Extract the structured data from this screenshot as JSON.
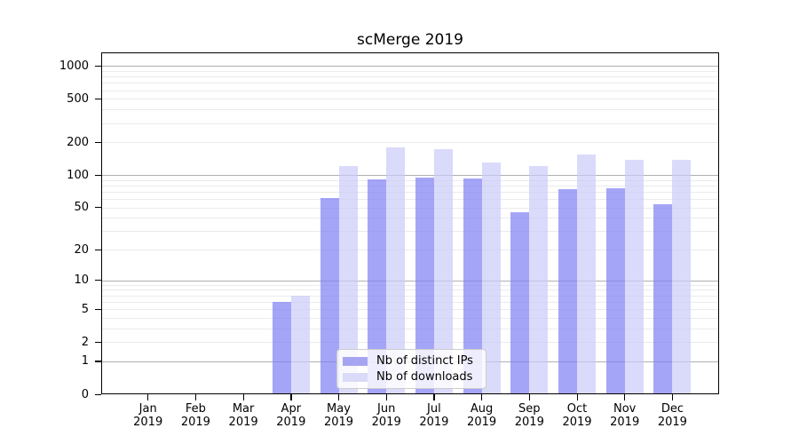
{
  "title": "scMerge 2019",
  "y_axis": {
    "tick_values": [
      1000,
      500,
      200,
      100,
      50,
      20,
      10,
      5,
      2,
      1,
      0
    ],
    "tick_labels": [
      "1000",
      "500",
      "200",
      "100",
      "50",
      "20",
      "10",
      "5",
      "2",
      "1",
      "0"
    ],
    "scale": "log10(value+1)"
  },
  "x_axis": {
    "months": [
      "Jan",
      "Feb",
      "Mar",
      "Apr",
      "May",
      "Jun",
      "Jul",
      "Aug",
      "Sep",
      "Oct",
      "Nov",
      "Dec"
    ],
    "year": "2019"
  },
  "legend": {
    "items": [
      {
        "label": "Nb of distinct IPs",
        "swatch_color": "#a5a5f3"
      },
      {
        "label": "Nb of downloads",
        "swatch_color": "#dadaf9"
      }
    ]
  },
  "colors": {
    "bar_ips": "rgba(127,127,243,0.7)",
    "bar_downloads": "rgba(203,203,250,0.7)",
    "grid_major": "#b0b0b0",
    "grid_minor": "#ebebeb",
    "spine": "#000000"
  },
  "chart_data": {
    "type": "bar",
    "title": "scMerge 2019",
    "categories": [
      "Jan 2019",
      "Feb 2019",
      "Mar 2019",
      "Apr 2019",
      "May 2019",
      "Jun 2019",
      "Jul 2019",
      "Aug 2019",
      "Sep 2019",
      "Oct 2019",
      "Nov 2019",
      "Dec 2019"
    ],
    "series": [
      {
        "name": "Nb of distinct IPs",
        "values": [
          0,
          0,
          0,
          6,
          61,
          91,
          95,
          92,
          45,
          74,
          76,
          54
        ]
      },
      {
        "name": "Nb of downloads",
        "values": [
          0,
          0,
          0,
          7,
          122,
          180,
          172,
          130,
          122,
          153,
          139,
          137
        ]
      }
    ],
    "xlabel": "",
    "ylabel": "",
    "y_ticks": [
      0,
      1,
      2,
      5,
      10,
      20,
      50,
      100,
      200,
      500,
      1000
    ],
    "ylim": [
      0,
      1350
    ],
    "y_scale": "log10(x+1)",
    "grid": "horizontal, major at powers of 10 + minor at 2-9 multiples",
    "legend_position": "lower center"
  }
}
